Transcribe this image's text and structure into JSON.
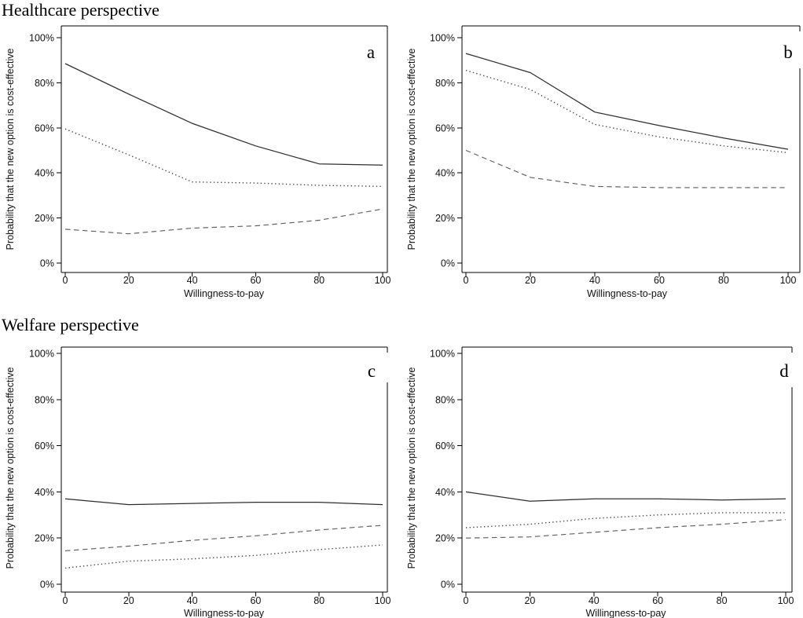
{
  "page": {
    "background": "#ffffff"
  },
  "sections": [
    {
      "title": "Healthcare perspective"
    },
    {
      "title": "Welfare perspective"
    }
  ],
  "style": {
    "axis_color": "#000000",
    "text_color": "#111111",
    "solid_line_color": "#2e2e2e",
    "dotted_line_color": "#4a4a4a",
    "dashed_line_color": "#5e5e5e"
  },
  "chart_data": [
    {
      "type": "line",
      "panel": "a",
      "section": "Healthcare perspective",
      "xlabel": "Willingness-to-pay",
      "ylabel": "Probability that the new option is cost-effective",
      "xlim": [
        0,
        100
      ],
      "ylim": [
        0,
        100
      ],
      "xticks": [
        0,
        20,
        40,
        60,
        80,
        100
      ],
      "xtick_labels": [
        "0",
        "20",
        "40",
        "60",
        "80",
        "100"
      ],
      "ytick_labels": [
        "0%",
        "20%",
        "40%",
        "60%",
        "80%",
        "100%"
      ],
      "grid": false,
      "legend": "none",
      "x": [
        0,
        20,
        40,
        60,
        80,
        100
      ],
      "series": [
        {
          "name": "solid",
          "line_style": "solid",
          "values": [
            88.5,
            75,
            62,
            52,
            44,
            43.5
          ]
        },
        {
          "name": "dotted",
          "line_style": "dotted",
          "values": [
            59.5,
            48,
            36,
            35.5,
            34.5,
            34
          ]
        },
        {
          "name": "dashed",
          "line_style": "dashed",
          "values": [
            15,
            13,
            15.5,
            16.5,
            19,
            24
          ]
        }
      ]
    },
    {
      "type": "line",
      "panel": "b",
      "section": "Healthcare perspective",
      "xlabel": "Willingness-to-pay",
      "ylabel": "Probability that the new option is cost-effective",
      "xlim": [
        0,
        100
      ],
      "ylim": [
        0,
        100
      ],
      "xticks": [
        0,
        20,
        40,
        60,
        80,
        100
      ],
      "xtick_labels": [
        "0",
        "20",
        "40",
        "60",
        "80",
        "100"
      ],
      "ytick_labels": [
        "0%",
        "20%",
        "40%",
        "60%",
        "80%",
        "100%"
      ],
      "grid": false,
      "legend": "none",
      "x": [
        0,
        20,
        40,
        60,
        80,
        100
      ],
      "series": [
        {
          "name": "solid",
          "line_style": "solid",
          "values": [
            93,
            84.5,
            67,
            61,
            55.5,
            50.5
          ]
        },
        {
          "name": "dotted",
          "line_style": "dotted",
          "values": [
            85.5,
            77,
            61.5,
            56,
            52,
            49
          ]
        },
        {
          "name": "dashed",
          "line_style": "dashed",
          "values": [
            50,
            38,
            34,
            33.5,
            33.5,
            33.5
          ]
        }
      ]
    },
    {
      "type": "line",
      "panel": "c",
      "section": "Welfare perspective",
      "xlabel": "Willingness-to-pay",
      "ylabel": "Probability that the new option is cost-effective",
      "xlim": [
        0,
        100
      ],
      "ylim": [
        0,
        100
      ],
      "xticks": [
        0,
        20,
        40,
        60,
        80,
        100
      ],
      "xtick_labels": [
        "0",
        "20",
        "40",
        "60",
        "80",
        "100"
      ],
      "ytick_labels": [
        "0%",
        "20%",
        "40%",
        "60%",
        "80%",
        "100%"
      ],
      "grid": false,
      "legend": "none",
      "x": [
        0,
        20,
        40,
        60,
        80,
        100
      ],
      "series": [
        {
          "name": "solid",
          "line_style": "solid",
          "values": [
            37,
            34.5,
            35,
            35.5,
            35.5,
            34.5
          ]
        },
        {
          "name": "dashed",
          "line_style": "dashed",
          "values": [
            14.5,
            16.5,
            19,
            21,
            23.5,
            25.5
          ]
        },
        {
          "name": "dotted",
          "line_style": "dotted",
          "values": [
            7,
            10,
            11,
            12.5,
            15,
            17
          ]
        }
      ]
    },
    {
      "type": "line",
      "panel": "d",
      "section": "Welfare perspective",
      "xlabel": "Willingness-to-pay",
      "ylabel": "Probability that the new option is cost-effective",
      "xlim": [
        0,
        100
      ],
      "ylim": [
        0,
        100
      ],
      "xticks": [
        0,
        20,
        40,
        60,
        80,
        100
      ],
      "xtick_labels": [
        "0",
        "20",
        "40",
        "60",
        "80",
        "100"
      ],
      "ytick_labels": [
        "0%",
        "20%",
        "40%",
        "60%",
        "80%",
        "100%"
      ],
      "grid": false,
      "legend": "none",
      "x": [
        0,
        20,
        40,
        60,
        80,
        100
      ],
      "series": [
        {
          "name": "solid",
          "line_style": "solid",
          "values": [
            40,
            36,
            37,
            37,
            36.5,
            37
          ]
        },
        {
          "name": "dotted",
          "line_style": "dotted",
          "values": [
            24.5,
            26,
            28.5,
            30,
            31,
            31
          ]
        },
        {
          "name": "dashed",
          "line_style": "dashed",
          "values": [
            20,
            20.5,
            22.5,
            24.5,
            26,
            28
          ]
        }
      ]
    }
  ]
}
